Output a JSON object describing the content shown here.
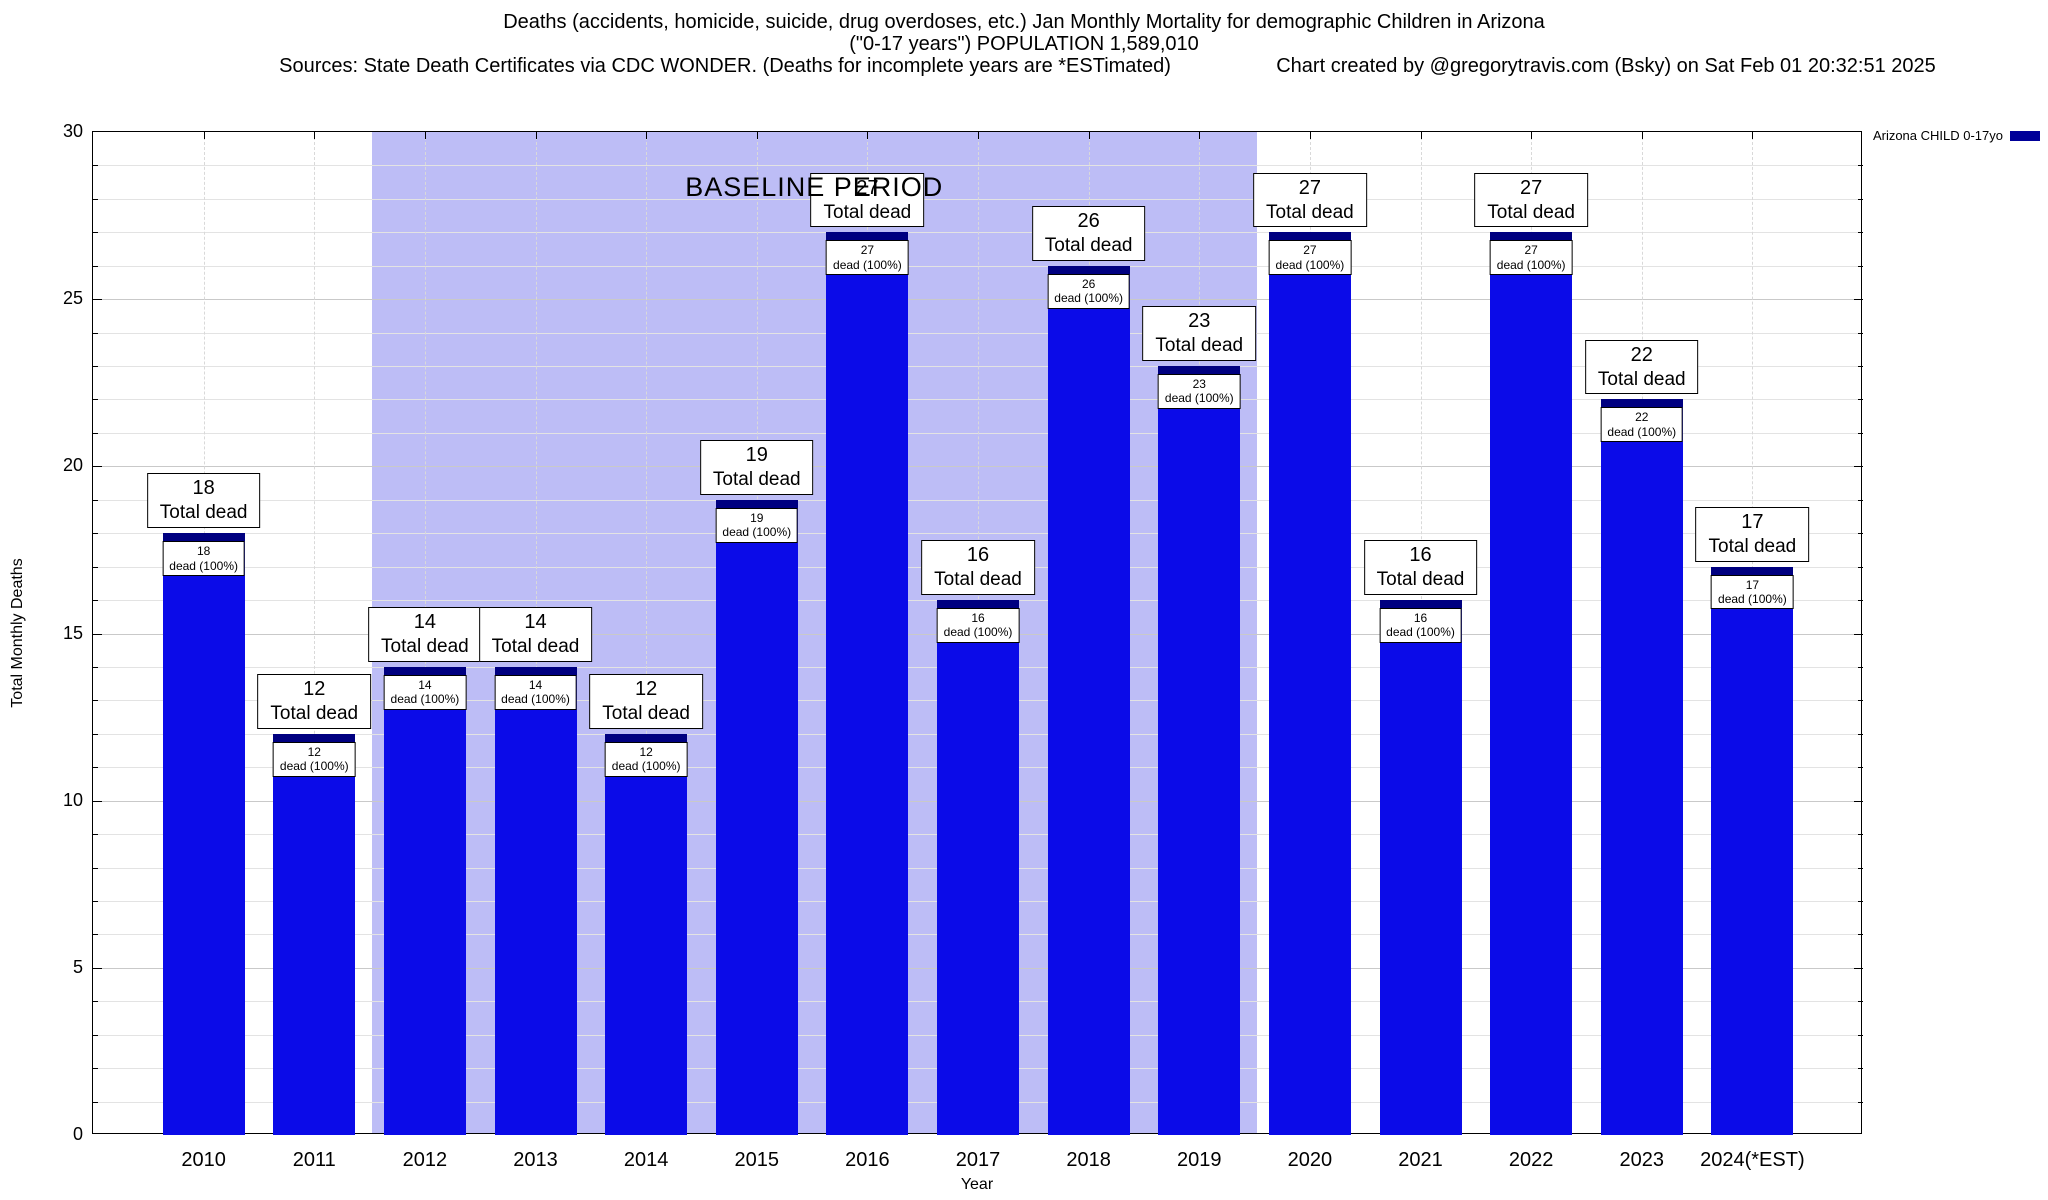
{
  "header": {
    "title_line1": "Deaths (accidents, homicide, suicide, drug overdoses, etc.) Jan Monthly Mortality for demographic Children in Arizona",
    "title_line2": "(\"0-17 years\") POPULATION 1,589,010",
    "sources": "Sources: State Death Certificates via CDC WONDER. (Deaths for incomplete years are *ESTimated)",
    "credit": "Chart created by @gregorytravis.com (Bsky) on Sat Feb 01 20:32:51 2025"
  },
  "legend": {
    "label": "Arizona CHILD 0-17yo",
    "color": "#000099"
  },
  "chart_data": {
    "type": "bar",
    "title": "Deaths (accidents, homicide, suicide, drug overdoses, etc.) Jan Monthly Mortality for demographic Children in Arizona (\"0-17 years\") POPULATION 1,589,010",
    "xlabel": "Year",
    "ylabel": "Total Monthly Deaths",
    "ylim": [
      0,
      30
    ],
    "yticks": [
      0,
      5,
      10,
      15,
      20,
      25,
      30
    ],
    "grid": true,
    "legend_position": "top-right",
    "categories": [
      "2010",
      "2011",
      "2012",
      "2013",
      "2014",
      "2015",
      "2016",
      "2017",
      "2018",
      "2019",
      "2020",
      "2021",
      "2022",
      "2023",
      "2024(*EST)"
    ],
    "values": [
      18,
      12,
      14,
      14,
      12,
      19,
      27,
      16,
      26,
      23,
      27,
      16,
      27,
      22,
      17
    ],
    "bar_color": "#0b0be8",
    "bar_cap_color": "#000080",
    "baseline_region_color": "#bdbdf6",
    "annotation_top_suffix": "Total dead",
    "annotation_inner_suffix": "dead (100%)",
    "baseline": {
      "label": "BASELINE PERIOD",
      "start_category": "2012",
      "end_category": "2019"
    }
  }
}
